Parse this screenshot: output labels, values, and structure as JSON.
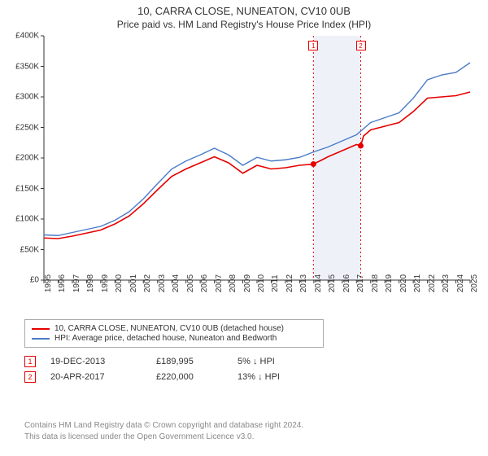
{
  "title": {
    "main": "10, CARRA CLOSE, NUNEATON, CV10 0UB",
    "sub": "Price paid vs. HM Land Registry's House Price Index (HPI)"
  },
  "chart": {
    "type": "line",
    "background_color": "#ffffff",
    "axis_color": "#333333",
    "font_size_axis": 10,
    "xlim": [
      1995,
      2025
    ],
    "ylim": [
      0,
      400000
    ],
    "ytick_step": 50000,
    "yticks": [
      "£0",
      "£50K",
      "£100K",
      "£150K",
      "£200K",
      "£250K",
      "£300K",
      "£350K",
      "£400K"
    ],
    "xticks": [
      "1995",
      "1996",
      "1997",
      "1998",
      "1999",
      "2000",
      "2001",
      "2002",
      "2003",
      "2004",
      "2005",
      "2006",
      "2007",
      "2008",
      "2009",
      "2010",
      "2011",
      "2012",
      "2013",
      "2014",
      "2015",
      "2016",
      "2017",
      "2018",
      "2019",
      "2020",
      "2021",
      "2022",
      "2023",
      "2024",
      "2025"
    ],
    "series": [
      {
        "name": "property",
        "label": "10, CARRA CLOSE, NUNEATON, CV10 0UB (detached house)",
        "color": "#e60000",
        "line_width": 1.6,
        "data": [
          [
            1995,
            69000
          ],
          [
            1996,
            68000
          ],
          [
            1997,
            72000
          ],
          [
            1998,
            77000
          ],
          [
            1999,
            82000
          ],
          [
            2000,
            92000
          ],
          [
            2001,
            105000
          ],
          [
            2002,
            125000
          ],
          [
            2003,
            148000
          ],
          [
            2004,
            170000
          ],
          [
            2005,
            182000
          ],
          [
            2006,
            192000
          ],
          [
            2007,
            202000
          ],
          [
            2008,
            192000
          ],
          [
            2009,
            175000
          ],
          [
            2010,
            188000
          ],
          [
            2011,
            182000
          ],
          [
            2012,
            184000
          ],
          [
            2013,
            188000
          ],
          [
            2013.97,
            189995
          ],
          [
            2014.5,
            196000
          ],
          [
            2015,
            202000
          ],
          [
            2016,
            212000
          ],
          [
            2017,
            222000
          ],
          [
            2017.3,
            220000
          ],
          [
            2017.5,
            236000
          ],
          [
            2018,
            246000
          ],
          [
            2019,
            252000
          ],
          [
            2020,
            258000
          ],
          [
            2021,
            276000
          ],
          [
            2022,
            298000
          ],
          [
            2023,
            300000
          ],
          [
            2024,
            302000
          ],
          [
            2025,
            308000
          ]
        ]
      },
      {
        "name": "hpi",
        "label": "HPI: Average price, detached house, Nuneaton and Bedworth",
        "color": "#4a7bc8",
        "line_width": 1.4,
        "data": [
          [
            1995,
            74000
          ],
          [
            1996,
            73000
          ],
          [
            1997,
            78000
          ],
          [
            1998,
            83000
          ],
          [
            1999,
            88000
          ],
          [
            2000,
            98000
          ],
          [
            2001,
            112000
          ],
          [
            2002,
            133000
          ],
          [
            2003,
            158000
          ],
          [
            2004,
            182000
          ],
          [
            2005,
            195000
          ],
          [
            2006,
            205000
          ],
          [
            2007,
            216000
          ],
          [
            2008,
            205000
          ],
          [
            2009,
            188000
          ],
          [
            2010,
            201000
          ],
          [
            2011,
            195000
          ],
          [
            2012,
            197000
          ],
          [
            2013,
            201000
          ],
          [
            2014,
            210000
          ],
          [
            2015,
            218000
          ],
          [
            2016,
            228000
          ],
          [
            2017,
            238000
          ],
          [
            2018,
            258000
          ],
          [
            2019,
            266000
          ],
          [
            2020,
            274000
          ],
          [
            2021,
            298000
          ],
          [
            2022,
            328000
          ],
          [
            2023,
            336000
          ],
          [
            2024,
            340000
          ],
          [
            2025,
            356000
          ]
        ]
      }
    ],
    "markers": [
      {
        "n": "1",
        "year": 2013.97,
        "value": 189995,
        "color": "#e60000"
      },
      {
        "n": "2",
        "year": 2017.3,
        "value": 220000,
        "color": "#e60000"
      }
    ],
    "shade": {
      "from": 2013.97,
      "to": 2017.3,
      "color": "#eef2f8"
    },
    "vline_dash_color": "#e60000"
  },
  "legend": {
    "border_color": "#aaaaaa",
    "items": [
      {
        "color": "#e60000",
        "label": "10, CARRA CLOSE, NUNEATON, CV10 0UB (detached house)"
      },
      {
        "color": "#4a7bc8",
        "label": "HPI: Average price, detached house, Nuneaton and Bedworth"
      }
    ]
  },
  "sales": [
    {
      "n": "1",
      "color": "#e60000",
      "date": "19-DEC-2013",
      "price": "£189,995",
      "delta": "5% ↓ HPI"
    },
    {
      "n": "2",
      "color": "#e60000",
      "date": "20-APR-2017",
      "price": "£220,000",
      "delta": "13% ↓ HPI"
    }
  ],
  "footer": {
    "line1": "Contains HM Land Registry data © Crown copyright and database right 2024.",
    "line2": "This data is licensed under the Open Government Licence v3.0."
  }
}
